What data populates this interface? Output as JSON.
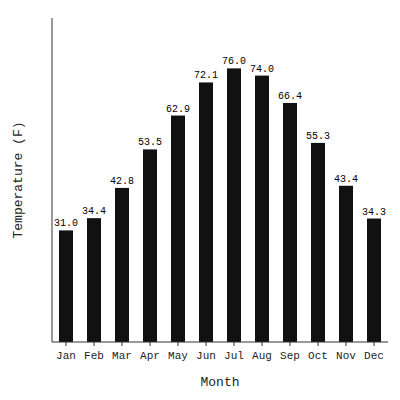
{
  "chart_data": {
    "type": "bar",
    "x_label": "Month",
    "y_label": "Temperature (F)",
    "categories": [
      "Jan",
      "Feb",
      "Mar",
      "Apr",
      "May",
      "Jun",
      "Jul",
      "Aug",
      "Sep",
      "Oct",
      "Nov",
      "Dec"
    ],
    "values": [
      31.0,
      34.4,
      42.8,
      53.5,
      62.9,
      72.1,
      76.0,
      74.0,
      66.4,
      55.3,
      43.4,
      34.3
    ],
    "value_labels": [
      "31.0",
      "34.4",
      "42.8",
      "53.5",
      "62.9",
      "72.1",
      "76.0",
      "74.0",
      "66.4",
      "55.3",
      "43.4",
      "34.3"
    ],
    "color": "#111111",
    "ylim": [
      0,
      90
    ],
    "data_labels": true,
    "tick_labels": "x",
    "grid": false
  }
}
